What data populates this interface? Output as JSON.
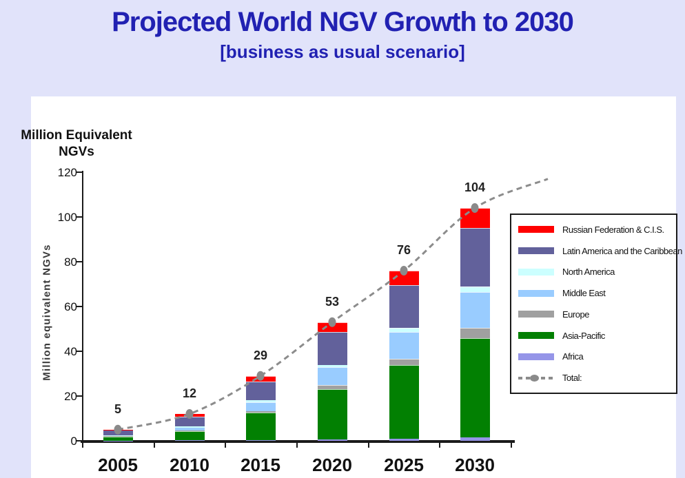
{
  "page": {
    "title": "Projected  World NGV Growth to 2030",
    "subtitle": "[business as usual scenario]",
    "title_color": "#2121B2",
    "background_color": "#E1E3FA",
    "panel_color": "#FFFFFF"
  },
  "axis_caption": {
    "line1": "Million Equivalent",
    "line2": "NGVs"
  },
  "chart_data": {
    "type": "bar",
    "stacked": true,
    "title": "Projected World NGV Growth to 2030",
    "subtitle": "[business as usual scenario]",
    "categories": [
      "2005",
      "2010",
      "2015",
      "2020",
      "2025",
      "2030"
    ],
    "xlabel": "",
    "ylabel": "Million equivalent NGVs",
    "ylim": [
      0,
      120
    ],
    "yticks": [
      0,
      20,
      40,
      60,
      80,
      100,
      120
    ],
    "grid": false,
    "legend_position": "right",
    "series": [
      {
        "name": "Africa",
        "color": "#9595E8",
        "values": [
          0.1,
          0.2,
          0.3,
          0.5,
          1.0,
          1.5
        ]
      },
      {
        "name": "Asia-Pacific",
        "color": "#028002",
        "values": [
          1.8,
          4.2,
          12.2,
          22.5,
          33.0,
          44.5
        ]
      },
      {
        "name": "Europe",
        "color": "#A0A0A0",
        "values": [
          0.2,
          0.3,
          0.8,
          2.0,
          2.5,
          4.5
        ]
      },
      {
        "name": "Middle East",
        "color": "#99CCFF",
        "values": [
          0.3,
          1.2,
          3.8,
          8.0,
          12.0,
          16.0
        ]
      },
      {
        "name": "North America",
        "color": "#CCFFFF",
        "values": [
          0.1,
          0.5,
          1.0,
          1.0,
          2.0,
          2.5
        ]
      },
      {
        "name": "Latin America and the Caribbean",
        "color": "#62619B",
        "values": [
          2.3,
          4.5,
          8.4,
          14.5,
          19.0,
          26.0
        ]
      },
      {
        "name": "Russian Federation & C.I.S.",
        "color": "#FF0000",
        "values": [
          0.2,
          1.1,
          2.5,
          4.5,
          6.5,
          9.0
        ]
      }
    ],
    "totals": [
      5,
      12,
      29,
      53,
      76,
      104
    ],
    "total_line": {
      "label": "Total:",
      "color": "#8C8C8C",
      "style": "dashed",
      "marker_color": "#8A8A8A",
      "extension_end_value": 117
    }
  }
}
